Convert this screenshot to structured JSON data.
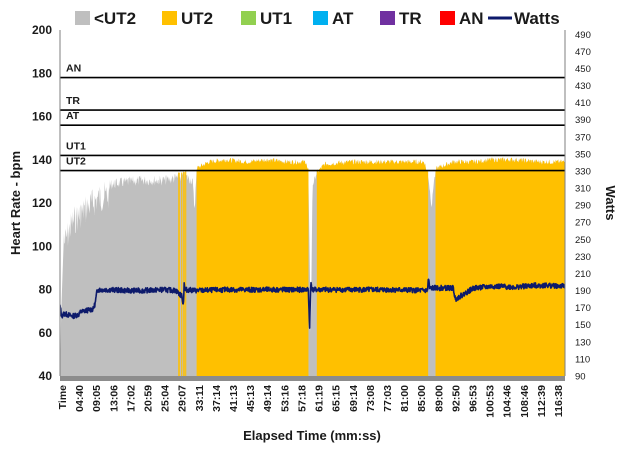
{
  "chart_data": {
    "type": "area",
    "title": "",
    "xlabel": "Elapsed Time (mm:ss)",
    "ylabel": "Heart Rate - bpm",
    "ylabel_right": "Watts",
    "ylim": [
      40,
      200
    ],
    "ylim_right": [
      90,
      495
    ],
    "yticks": [
      40,
      60,
      80,
      100,
      120,
      140,
      160,
      180,
      200
    ],
    "yticks_right": [
      90,
      110,
      130,
      150,
      170,
      190,
      210,
      230,
      250,
      270,
      290,
      310,
      330,
      350,
      370,
      390,
      410,
      430,
      450,
      470,
      490
    ],
    "x_range_minutes": [
      0,
      122
    ],
    "x_ticks": [
      "Time",
      "04:40",
      "09:05",
      "13:06",
      "17:02",
      "20:59",
      "25:04",
      "29:07",
      "33:11",
      "37:14",
      "41:13",
      "45:13",
      "49:14",
      "53:16",
      "57:18",
      "61:19",
      "65:15",
      "69:14",
      "73:08",
      "77:03",
      "81:00",
      "85:00",
      "89:00",
      "92:50",
      "96:53",
      "100:53",
      "104:46",
      "108:46",
      "112:39",
      "116:38"
    ],
    "legend": [
      {
        "name": "<UT2",
        "color": "#bfbfbf"
      },
      {
        "name": "UT2",
        "color": "#ffc000"
      },
      {
        "name": "UT1",
        "color": "#92d050"
      },
      {
        "name": "AT",
        "color": "#00b0f0"
      },
      {
        "name": "TR",
        "color": "#7030a0"
      },
      {
        "name": "AN",
        "color": "#ff0000"
      },
      {
        "name": "Watts",
        "color": "#0d1a6b"
      }
    ],
    "zones": [
      {
        "name": "UT2",
        "threshold_bpm": 135
      },
      {
        "name": "UT1",
        "threshold_bpm": 142
      },
      {
        "name": "AT",
        "threshold_bpm": 156
      },
      {
        "name": "TR",
        "threshold_bpm": 163
      },
      {
        "name": "AN",
        "threshold_bpm": 178
      }
    ],
    "series": [
      {
        "name": "Heart Rate",
        "unit": "bpm",
        "x_minutes": [
          0,
          0.3,
          1,
          3,
          6,
          9,
          12,
          15,
          20,
          25,
          28,
          30,
          32,
          32.5,
          33,
          36,
          40,
          45,
          50,
          55,
          59.5,
          60,
          60.6,
          61,
          62,
          64,
          70,
          80,
          88,
          89,
          89.8,
          90.3,
          91,
          95,
          100,
          104,
          110,
          116,
          121,
          122
        ],
        "values": [
          40,
          70,
          108,
          118,
          124,
          129,
          131,
          132,
          133,
          133,
          134,
          135,
          133,
          120,
          136,
          139,
          140,
          139,
          140,
          139,
          139,
          132,
          60,
          128,
          134,
          138,
          139,
          139,
          139,
          132,
          118,
          130,
          136,
          139,
          139,
          140,
          140,
          139,
          139,
          139
        ]
      },
      {
        "name": "Watts",
        "unit": "W",
        "x_minutes": [
          0,
          0.4,
          1,
          3,
          4.5,
          5,
          7.5,
          8,
          8.5,
          9,
          12,
          16,
          20,
          25,
          28,
          29.5,
          29.8,
          30,
          30.2,
          30.5,
          33,
          40,
          50,
          60,
          60.3,
          60.6,
          61,
          62,
          70,
          80,
          88,
          88.8,
          89,
          89.3,
          90,
          95,
          95.5,
          100,
          105,
          110,
          115,
          118,
          122
        ],
        "values": [
          172,
          160,
          163,
          160,
          162,
          165,
          168,
          168,
          175,
          191,
          191,
          190,
          190,
          191,
          190,
          183,
          172,
          200,
          190,
          191,
          190,
          191,
          191,
          191,
          145,
          200,
          191,
          191,
          191,
          191,
          190,
          190,
          205,
          192,
          193,
          193,
          180,
          193,
          195,
          194,
          196,
          196,
          195
        ]
      }
    ]
  }
}
